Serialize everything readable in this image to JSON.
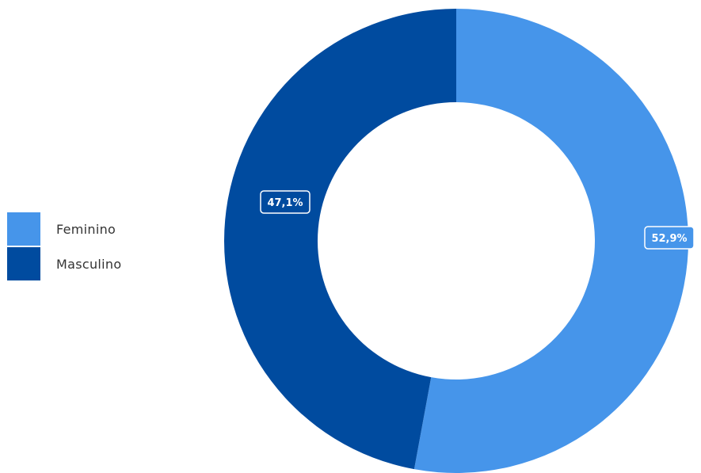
{
  "chart_data": {
    "type": "pie",
    "variant": "donut",
    "categories": [
      "Feminino",
      "Masculino"
    ],
    "values": [
      52.9,
      47.1
    ],
    "value_labels": [
      "52,9%",
      "47,1%"
    ],
    "colors": [
      "#4695ea",
      "#004b9f"
    ],
    "legend_position": "left",
    "title": "",
    "start": "top",
    "direction": "clockwise"
  }
}
